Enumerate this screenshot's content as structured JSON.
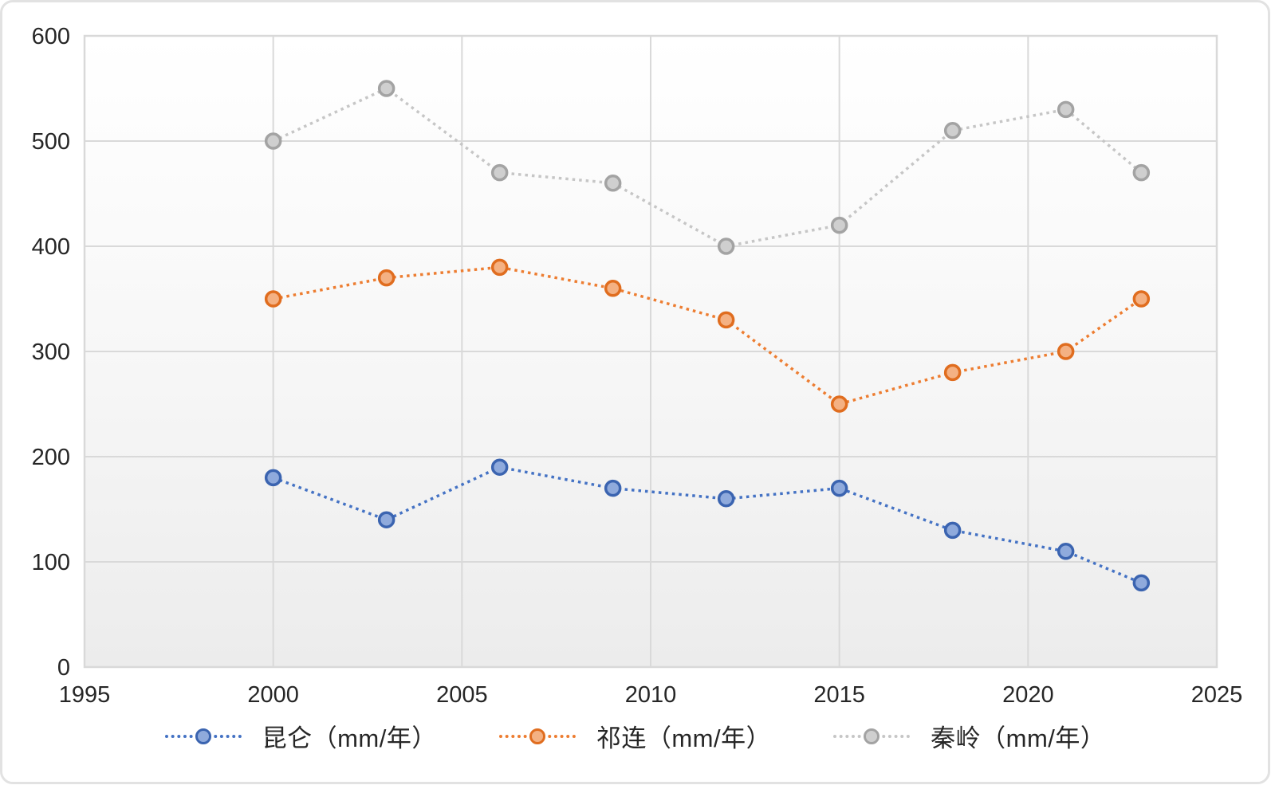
{
  "chart_data": {
    "type": "line",
    "line_style": "dotted",
    "title": "",
    "xlabel": "",
    "ylabel": "",
    "x": [
      2000,
      2003,
      2006,
      2009,
      2012,
      2015,
      2018,
      2021,
      2023
    ],
    "series": [
      {
        "name": "昆仑（mm/年）",
        "values": [
          180,
          140,
          190,
          170,
          160,
          170,
          130,
          110,
          80
        ],
        "line_color": "#4472c4",
        "marker_stroke": "#3b64b0",
        "marker_fill": "#8faadc"
      },
      {
        "name": "祁连（mm/年）",
        "values": [
          350,
          370,
          380,
          360,
          330,
          250,
          280,
          300,
          350
        ],
        "line_color": "#ed7d31",
        "marker_stroke": "#e06d1f",
        "marker_fill": "#f4b183"
      },
      {
        "name": "秦岭（mm/年）",
        "values": [
          500,
          550,
          470,
          460,
          400,
          420,
          510,
          530,
          470
        ],
        "line_color": "#c6c6c6",
        "marker_stroke": "#a3a3a3",
        "marker_fill": "#cfcfcf"
      }
    ],
    "x_ticks": [
      1995,
      2000,
      2005,
      2010,
      2015,
      2020,
      2025
    ],
    "y_ticks": [
      0,
      100,
      200,
      300,
      400,
      500,
      600
    ],
    "xlim": [
      1995,
      2025
    ],
    "ylim": [
      0,
      600
    ],
    "grid": true,
    "legend_position": "bottom",
    "axis_text_color": "#262626",
    "grid_color": "#d9d9d9",
    "plot_bg_top": "#ffffff",
    "plot_bg_bottom": "#ececec"
  }
}
